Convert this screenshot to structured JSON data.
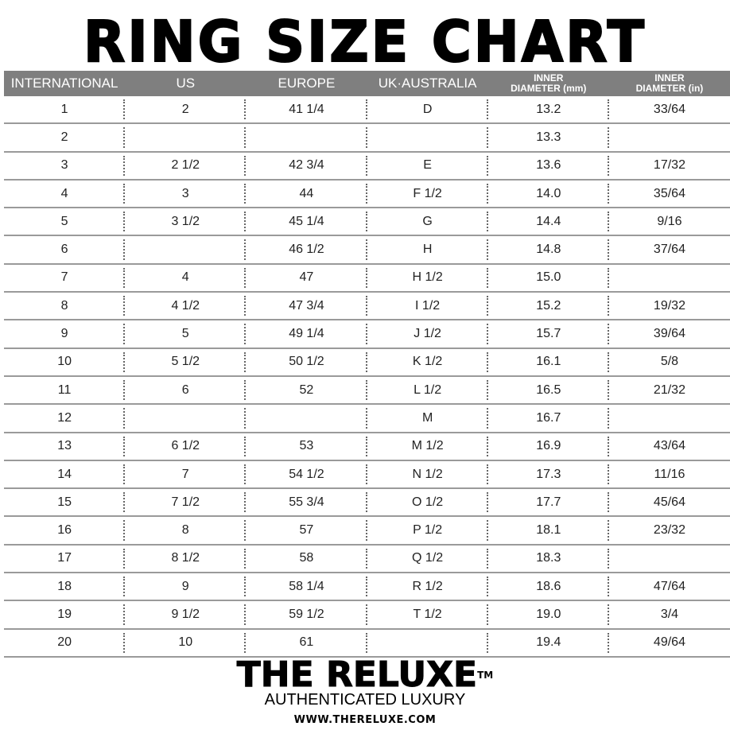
{
  "title": "RING SIZE CHART",
  "headers": [
    {
      "lines": [
        "INTERNATIONAL"
      ]
    },
    {
      "lines": [
        "US"
      ]
    },
    {
      "lines": [
        "EUROPE"
      ]
    },
    {
      "lines": [
        "UK·AUSTRALIA"
      ]
    },
    {
      "lines": [
        "INNER",
        "DIAMETER (mm)"
      ]
    },
    {
      "lines": [
        "INNER",
        "DIAMETER (in)"
      ]
    }
  ],
  "rows": [
    [
      "1",
      "2",
      "41 1/4",
      "D",
      "13.2",
      "33/64"
    ],
    [
      "2",
      "",
      "",
      "",
      "13.3",
      ""
    ],
    [
      "3",
      "2 1/2",
      "42 3/4",
      "E",
      "13.6",
      "17/32"
    ],
    [
      "4",
      "3",
      "44",
      "F 1/2",
      "14.0",
      "35/64"
    ],
    [
      "5",
      "3 1/2",
      "45 1/4",
      "G",
      "14.4",
      "9/16"
    ],
    [
      "6",
      "",
      "46 1/2",
      "H",
      "14.8",
      "37/64"
    ],
    [
      "7",
      "4",
      "47",
      "H 1/2",
      "15.0",
      ""
    ],
    [
      "8",
      "4 1/2",
      "47 3/4",
      "I 1/2",
      "15.2",
      "19/32"
    ],
    [
      "9",
      "5",
      "49 1/4",
      "J 1/2",
      "15.7",
      "39/64"
    ],
    [
      "10",
      "5 1/2",
      "50 1/2",
      "K 1/2",
      "16.1",
      "5/8"
    ],
    [
      "11",
      "6",
      "52",
      "L 1/2",
      "16.5",
      "21/32"
    ],
    [
      "12",
      "",
      "",
      "M",
      "16.7",
      ""
    ],
    [
      "13",
      "6 1/2",
      "53",
      "M 1/2",
      "16.9",
      "43/64"
    ],
    [
      "14",
      "7",
      "54 1/2",
      "N 1/2",
      "17.3",
      "11/16"
    ],
    [
      "15",
      "7 1/2",
      "55 3/4",
      "O 1/2",
      "17.7",
      "45/64"
    ],
    [
      "16",
      "8",
      "57",
      "P 1/2",
      "18.1",
      "23/32"
    ],
    [
      "17",
      "8 1/2",
      "58",
      "Q 1/2",
      "18.3",
      ""
    ],
    [
      "18",
      "9",
      "58 1/4",
      "R 1/2",
      "18.6",
      "47/64"
    ],
    [
      "19",
      "9 1/2",
      "59 1/2",
      "T 1/2",
      "19.0",
      "3/4"
    ],
    [
      "20",
      "10",
      "61",
      "",
      "19.4",
      "49/64"
    ]
  ],
  "footer": {
    "brand": "THE RELUXE",
    "trademark": "TM",
    "tagline": "AUTHENTICATED LUXURY",
    "url": "WWW.THERELUXE.COM"
  },
  "colors": {
    "header_bg": "#7f7f7f",
    "header_text": "#ffffff",
    "divider": "#9a9a9a"
  }
}
